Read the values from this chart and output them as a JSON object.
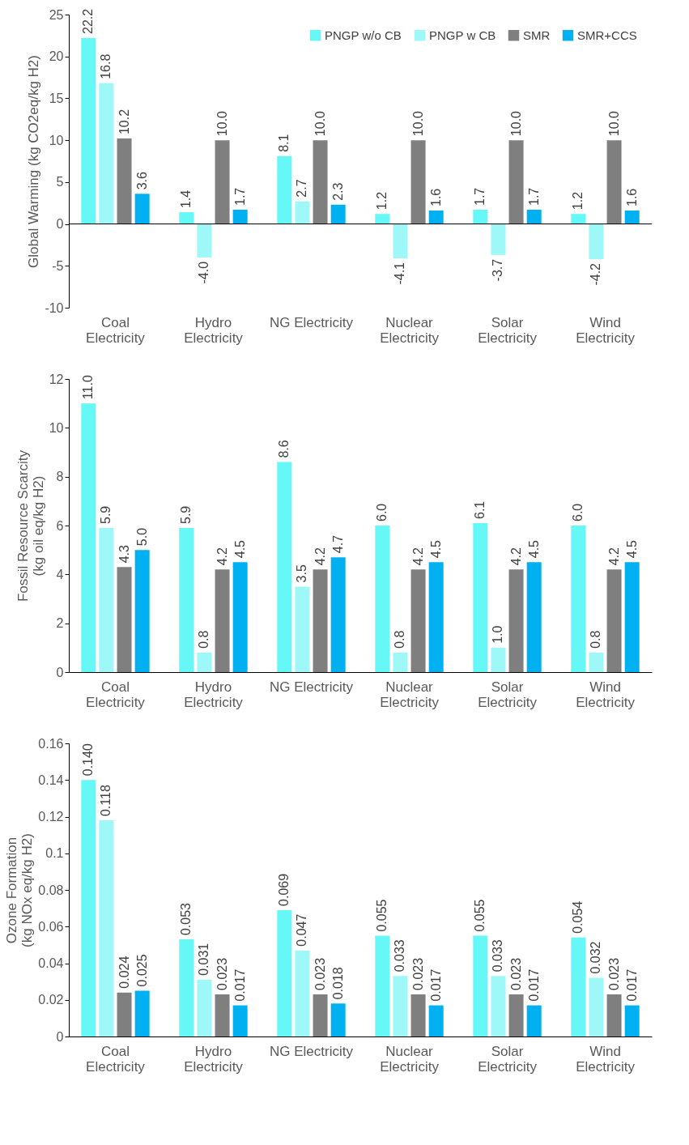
{
  "chart_data": [
    {
      "type": "bar",
      "ylabel": "Global Warming (kg CO2eq/kg H2)",
      "categories": [
        "Coal\nElectricity",
        "Hydro\nElectricity",
        "NG Electricity",
        "Nuclear\nElectricity",
        "Solar\nElectricity",
        "Wind\nElectricity"
      ],
      "ylim": [
        -10,
        25
      ],
      "yticks": [
        -10,
        -5,
        0,
        5,
        10,
        15,
        20,
        25
      ],
      "grid": false,
      "legend": "top right",
      "ref_lines": [
        {
          "axis": "y",
          "value": 0,
          "color": "#000000",
          "line_style": "solid"
        }
      ],
      "series": [
        {
          "name": "PNGP w/o CB",
          "color": "#66f7f7",
          "values": [
            22.2,
            1.4,
            8.1,
            1.2,
            1.7,
            1.2
          ],
          "value_labels": [
            "22.2",
            "1.4",
            "8.1",
            "1.2",
            "1.7",
            "1.2"
          ]
        },
        {
          "name": "PNGP w CB",
          "color": "#9ef8f8",
          "values": [
            16.8,
            -4.0,
            2.7,
            -4.1,
            -3.7,
            -4.2
          ],
          "value_labels": [
            "16.8",
            "-4.0",
            "2.7",
            "-4.1",
            "-3.7",
            "-4.2"
          ]
        },
        {
          "name": "SMR",
          "color": "#7f7f7f",
          "values": [
            10.2,
            10.0,
            10.0,
            10.0,
            10.0,
            10.0
          ],
          "value_labels": [
            "10.2",
            "10.0",
            "10.0",
            "10.0",
            "10.0",
            "10.0"
          ]
        },
        {
          "name": "SMR+CCS",
          "color": "#00b0f0",
          "values": [
            3.6,
            1.7,
            2.3,
            1.6,
            1.7,
            1.6
          ],
          "value_labels": [
            "3.6",
            "1.7",
            "2.3",
            "1.6",
            "1.7",
            "1.6"
          ]
        }
      ]
    },
    {
      "type": "bar",
      "ylabel": "Fossil Resource Scarcity\n(kg oil eq/kg H2)",
      "categories": [
        "Coal\nElectricity",
        "Hydro\nElectricity",
        "NG Electricity",
        "Nuclear\nElectricity",
        "Solar\nElectricity",
        "Wind\nElectricity"
      ],
      "ylim": [
        0,
        12
      ],
      "yticks": [
        0,
        2,
        4,
        6,
        8,
        10,
        12
      ],
      "grid": false,
      "series": [
        {
          "color": "#66f7f7",
          "values": [
            11.0,
            5.9,
            8.6,
            6.0,
            6.1,
            6.0
          ],
          "value_labels": [
            "11.0",
            "5.9",
            "8.6",
            "6.0",
            "6.1",
            "6.0"
          ]
        },
        {
          "color": "#9ef8f8",
          "values": [
            5.9,
            0.8,
            3.5,
            0.8,
            1.0,
            0.8
          ],
          "value_labels": [
            "5.9",
            "0.8",
            "3.5",
            "0.8",
            "1.0",
            "0.8"
          ]
        },
        {
          "color": "#7f7f7f",
          "values": [
            4.3,
            4.2,
            4.2,
            4.2,
            4.2,
            4.2
          ],
          "value_labels": [
            "4.3",
            "4.2",
            "4.2",
            "4.2",
            "4.2",
            "4.2"
          ]
        },
        {
          "color": "#00b0f0",
          "values": [
            5.0,
            4.5,
            4.7,
            4.5,
            4.5,
            4.5
          ],
          "value_labels": [
            "5.0",
            "4.5",
            "4.7",
            "4.5",
            "4.5",
            "4.5"
          ]
        }
      ]
    },
    {
      "type": "bar",
      "ylabel": "Ozone Formation\n(kg NOx eq/kg H2)",
      "categories": [
        "Coal\nElectricity",
        "Hydro\nElectricity",
        "NG Electricity",
        "Nuclear\nElectricity",
        "Solar\nElectricity",
        "Wind\nElectricity"
      ],
      "ylim": [
        0,
        0.16
      ],
      "yticks": [
        0,
        0.02,
        0.04,
        0.06,
        0.08,
        0.1,
        0.12,
        0.14,
        0.16
      ],
      "grid": false,
      "series": [
        {
          "color": "#66f7f7",
          "values": [
            0.14,
            0.053,
            0.069,
            0.055,
            0.055,
            0.054
          ],
          "value_labels": [
            "0.140",
            "0.053",
            "0.069",
            "0.055",
            "0.055",
            "0.054"
          ]
        },
        {
          "color": "#9ef8f8",
          "values": [
            0.118,
            0.031,
            0.047,
            0.033,
            0.033,
            0.032
          ],
          "value_labels": [
            "0.118",
            "0.031",
            "0.047",
            "0.033",
            "0.033",
            "0.032"
          ]
        },
        {
          "color": "#7f7f7f",
          "values": [
            0.024,
            0.023,
            0.023,
            0.023,
            0.023,
            0.023
          ],
          "value_labels": [
            "0.024",
            "0.023",
            "0.023",
            "0.023",
            "0.023",
            "0.023"
          ]
        },
        {
          "color": "#00b0f0",
          "values": [
            0.025,
            0.017,
            0.018,
            0.017,
            0.017,
            0.017
          ],
          "value_labels": [
            "0.025",
            "0.017",
            "0.018",
            "0.017",
            "0.017",
            "0.017"
          ]
        }
      ]
    }
  ]
}
